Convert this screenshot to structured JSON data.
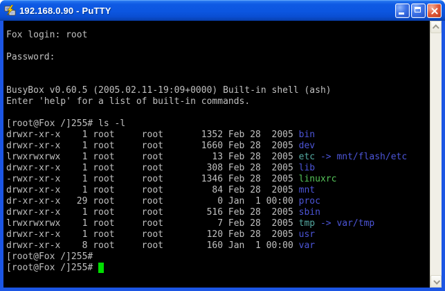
{
  "window": {
    "title": "192.168.0.90 - PuTTY",
    "app_icon": "putty-two-computers-lightning",
    "controls": {
      "minimize_icon": "minimize-bar",
      "maximize_icon": "maximize-square",
      "close_icon": "close-x"
    }
  },
  "theme": {
    "term-bg": "#000000",
    "term-fg": "#c0c0c0",
    "dir-blue": "#4c55d8",
    "link-cyan": "#55aaa2",
    "exec-green": "#55c45a",
    "cursor-green": "#00dd00",
    "frame-blue": "#1c56e4",
    "scroll-track": "#f1efe7"
  },
  "scrollbar": {
    "up_icon": "chevron-up",
    "down_icon": "chevron-down"
  },
  "terminal": {
    "hostname": "Fox",
    "user": "root",
    "prompt": "[root@Fox /]255#",
    "lines": [
      [
        {
          "t": "Fox login: root"
        }
      ],
      [],
      [
        {
          "t": "Password:"
        }
      ],
      [],
      [],
      [
        {
          "t": "BusyBox v0.60.5 (2005.02.11-19:09+0000) Built-in shell (ash)"
        }
      ],
      [
        {
          "t": "Enter 'help' for a list of built-in commands."
        }
      ],
      [],
      [
        {
          "t": "[root@Fox /]255# ls -l"
        }
      ],
      [
        {
          "t": "drwxr-xr-x    1 root     root       1352 Feb 28  2005 "
        },
        {
          "t": "bin",
          "c": "dir"
        }
      ],
      [
        {
          "t": "drwxr-xr-x    1 root     root       1660 Feb 28  2005 "
        },
        {
          "t": "dev",
          "c": "dir"
        }
      ],
      [
        {
          "t": "lrwxrwxrwx    1 root     root         13 Feb 28  2005 "
        },
        {
          "t": "etc",
          "c": "link"
        },
        {
          "t": " "
        },
        {
          "t": "->",
          "c": "dir"
        },
        {
          "t": " "
        },
        {
          "t": "mnt/flash/etc",
          "c": "dir"
        }
      ],
      [
        {
          "t": "drwxr-xr-x    1 root     root        308 Feb 28  2005 "
        },
        {
          "t": "lib",
          "c": "dir"
        }
      ],
      [
        {
          "t": "-rwxr-xr-x    1 root     root       1346 Feb 28  2005 "
        },
        {
          "t": "linuxrc",
          "c": "exec"
        }
      ],
      [
        {
          "t": "drwxr-xr-x    1 root     root         84 Feb 28  2005 "
        },
        {
          "t": "mnt",
          "c": "dir"
        }
      ],
      [
        {
          "t": "dr-xr-xr-x   29 root     root          0 Jan  1 00:00 "
        },
        {
          "t": "proc",
          "c": "dir"
        }
      ],
      [
        {
          "t": "drwxr-xr-x    1 root     root        516 Feb 28  2005 "
        },
        {
          "t": "sbin",
          "c": "dir"
        }
      ],
      [
        {
          "t": "lrwxrwxrwx    1 root     root          7 Feb 28  2005 "
        },
        {
          "t": "tmp",
          "c": "link"
        },
        {
          "t": " "
        },
        {
          "t": "->",
          "c": "dir"
        },
        {
          "t": " "
        },
        {
          "t": "var/tmp",
          "c": "dir"
        }
      ],
      [
        {
          "t": "drwxr-xr-x    1 root     root        120 Feb 28  2005 "
        },
        {
          "t": "usr",
          "c": "dir"
        }
      ],
      [
        {
          "t": "drwxr-xr-x    8 root     root        160 Jan  1 00:00 "
        },
        {
          "t": "var",
          "c": "dir"
        }
      ],
      [
        {
          "t": "[root@Fox /]255#"
        }
      ],
      [
        {
          "t": "[root@Fox /]255# "
        },
        {
          "t": " ",
          "c": "cursor"
        }
      ]
    ]
  }
}
